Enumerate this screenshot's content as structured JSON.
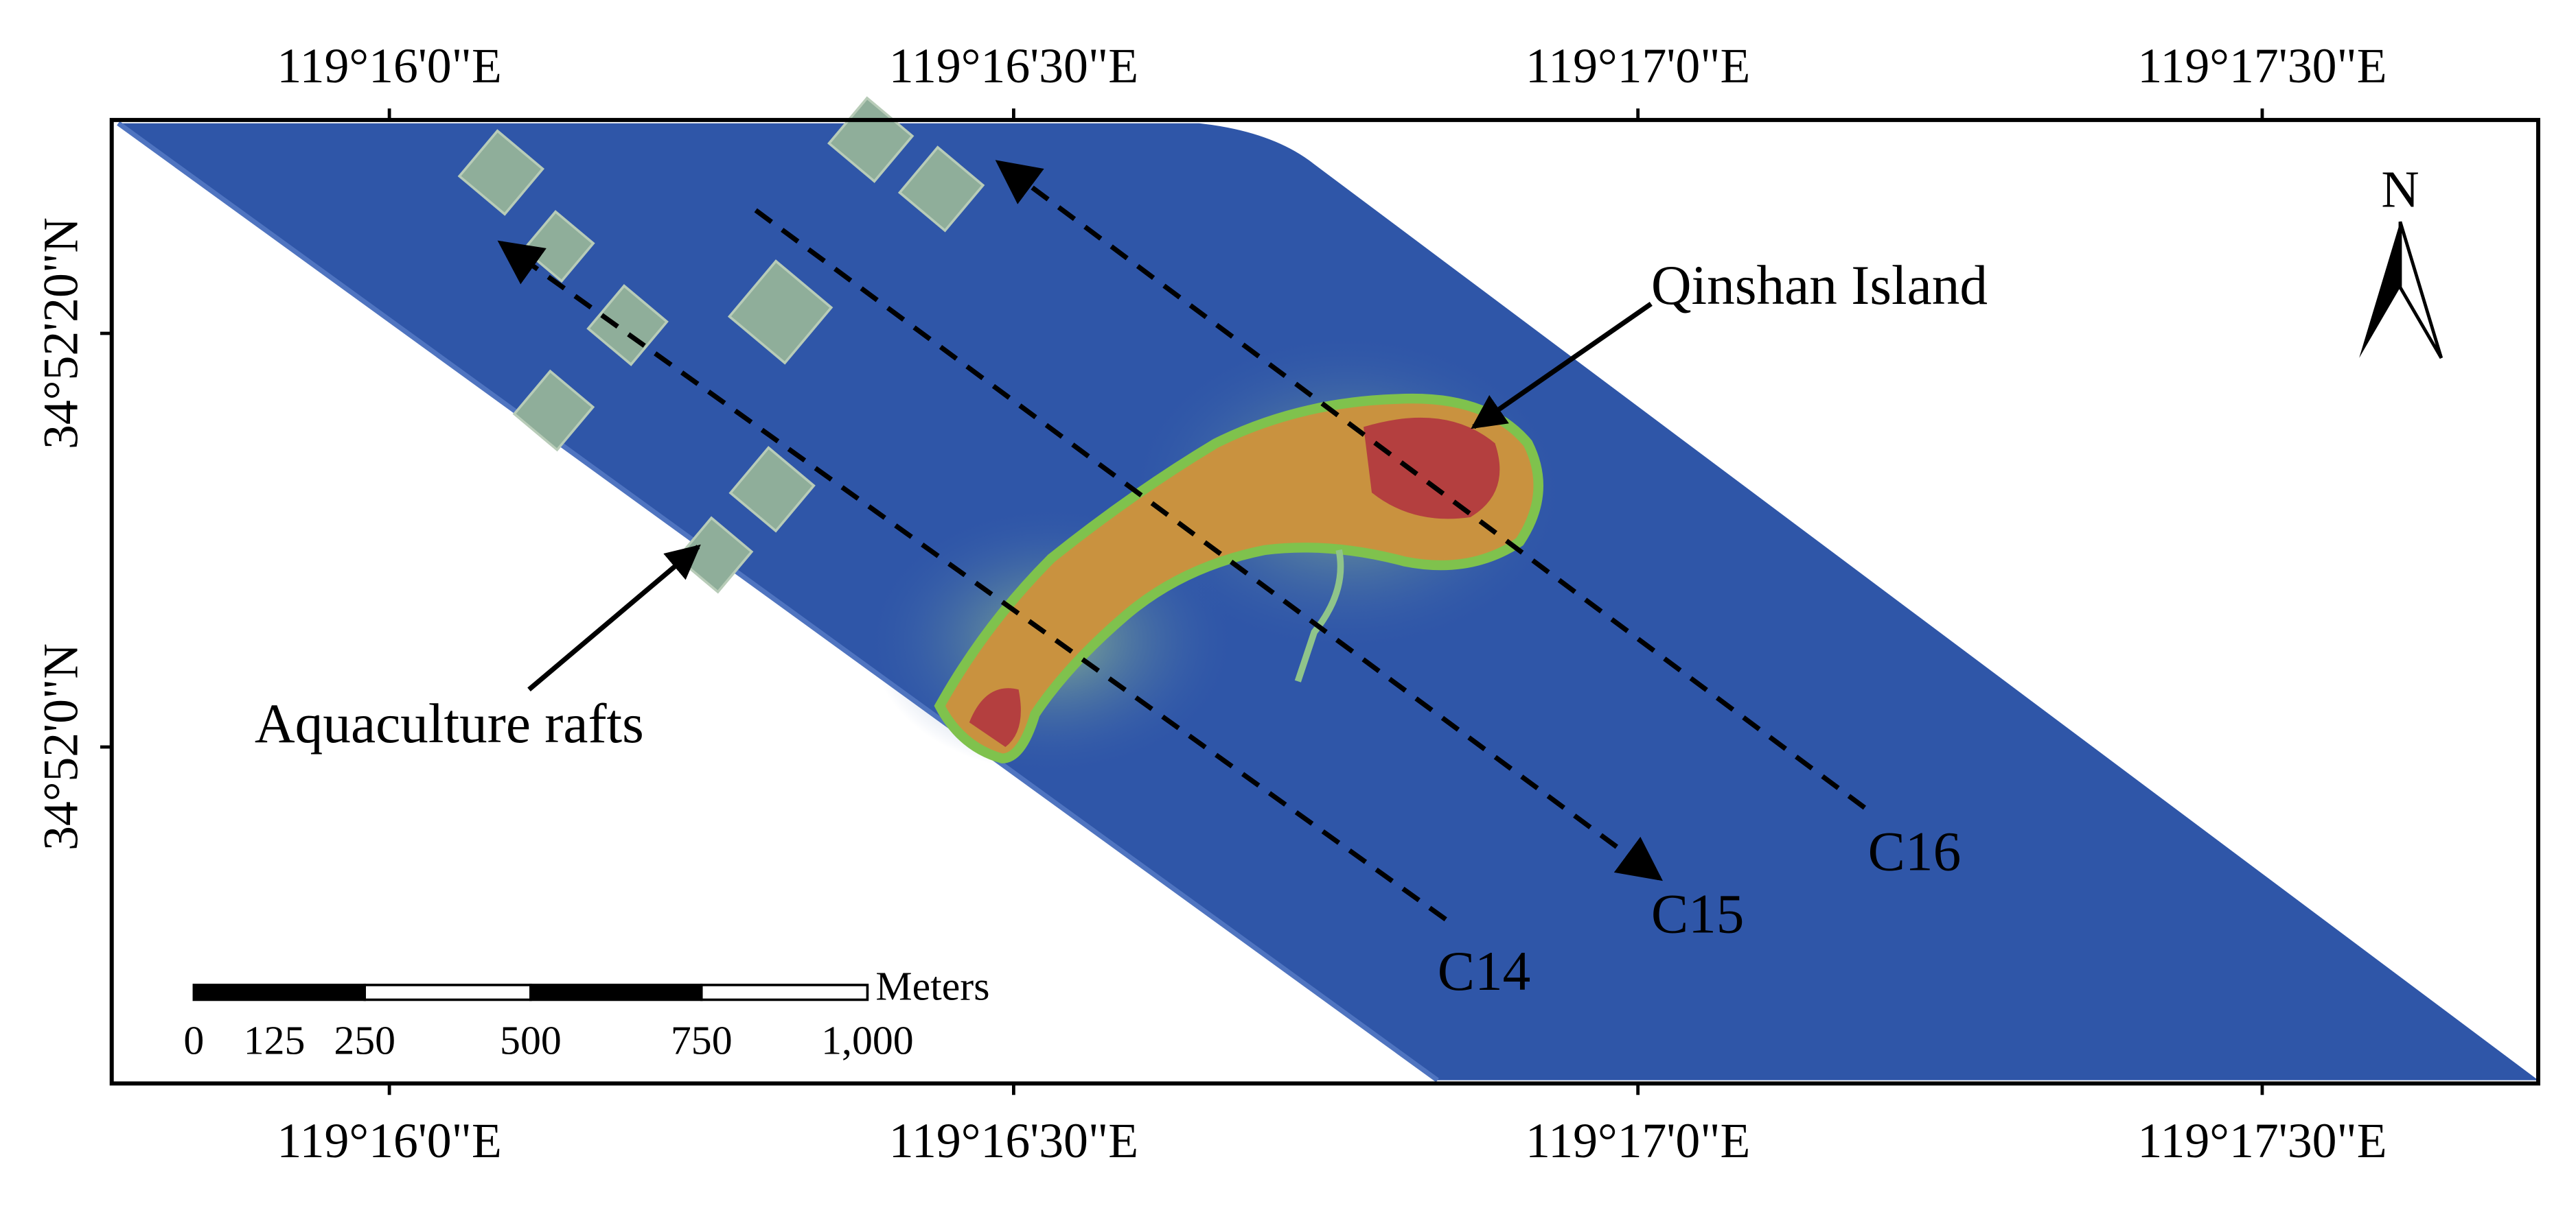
{
  "longitude_labels_top": [
    "119°16'0\"E",
    "119°16'30\"E",
    "119°17'0\"E",
    "119°17'30\"E"
  ],
  "longitude_labels_bottom": [
    "119°16'0\"E",
    "119°16'30\"E",
    "119°17'0\"E",
    "119°17'30\"E"
  ],
  "latitude_labels": [
    "34°52'20\"N",
    "34°52'0\"N"
  ],
  "north_label": "N",
  "annotations": {
    "island": "Qinshan Island",
    "rafts": "Aquaculture rafts"
  },
  "transects": [
    "C14",
    "C15",
    "C16"
  ],
  "scale_bar": {
    "unit": "Meters",
    "labels": [
      "0",
      "125",
      "250",
      "500",
      "750",
      "1,000"
    ]
  }
}
